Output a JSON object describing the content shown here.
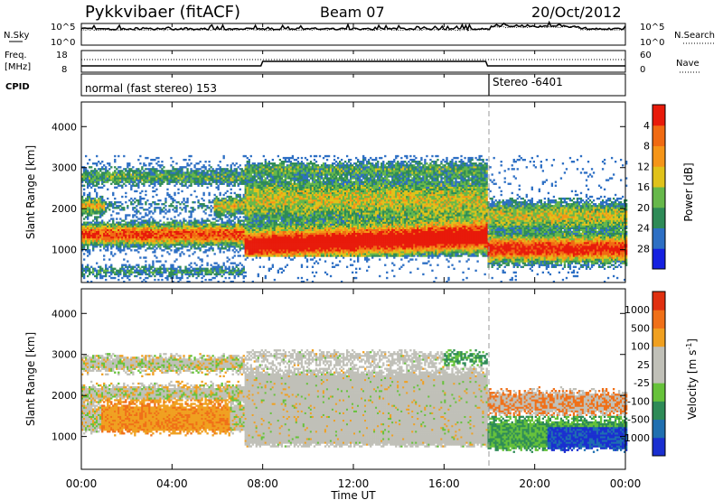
{
  "header": {
    "title": "Pykkvibaer (fitACF)",
    "beam": "Beam 07",
    "date": "20/Oct/2012"
  },
  "noise_panel": {
    "left_label": "N.Sky",
    "right_label": "N.Search",
    "left_ticks": [
      "10^5",
      "10^0"
    ],
    "right_ticks": [
      "10^5",
      "10^0"
    ]
  },
  "freq_panel": {
    "left_label_1": "Freq.",
    "left_label_2": "[MHz]",
    "right_label": "Nave",
    "left_ticks": [
      "18",
      "8"
    ],
    "right_ticks": [
      "60",
      "0"
    ]
  },
  "cpid_panel": {
    "label": "CPID",
    "segments": [
      "normal (fast stereo) 153",
      "Stereo -6401"
    ]
  },
  "x_axis": {
    "ticks": [
      "00:00",
      "04:00",
      "08:00",
      "12:00",
      "16:00",
      "20:00",
      "00:00"
    ],
    "label": "Time UT"
  },
  "chart_data": [
    {
      "type": "heatmap",
      "name": "power",
      "ylabel": "Slant Range [km]",
      "yticks": [
        "1000",
        "2000",
        "3000",
        "4000"
      ],
      "ylim": [
        200,
        4600
      ],
      "x_hours": [
        0,
        24
      ],
      "colorbar": {
        "label": "Power [dB]",
        "ticks": [
          "4",
          "8",
          "12",
          "16",
          "20",
          "24",
          "28"
        ],
        "colors": [
          "#1520e0",
          "#2d6fc4",
          "#2e8b57",
          "#66b84a",
          "#e0c21a",
          "#f59518",
          "#f06a12",
          "#e81a0a"
        ]
      }
    },
    {
      "type": "heatmap",
      "name": "velocity",
      "ylabel": "Slant Range [km]",
      "yticks": [
        "1000",
        "2000",
        "3000",
        "4000"
      ],
      "ylim": [
        200,
        4600
      ],
      "x_hours": [
        0,
        24
      ],
      "colorbar": {
        "label": "Velocity [m s",
        "label_sup": "-1",
        "label_end": "]",
        "ticks": [
          "1000",
          "500",
          "100",
          "25",
          "-25",
          "-100",
          "-500",
          "-1000"
        ],
        "colors": [
          "#1a2fd0",
          "#1f6fb0",
          "#2e8b57",
          "#66c23a",
          "#c0c0b8",
          "#c0c0b8",
          "#f0a020",
          "#f07018",
          "#e03010"
        ]
      }
    }
  ]
}
